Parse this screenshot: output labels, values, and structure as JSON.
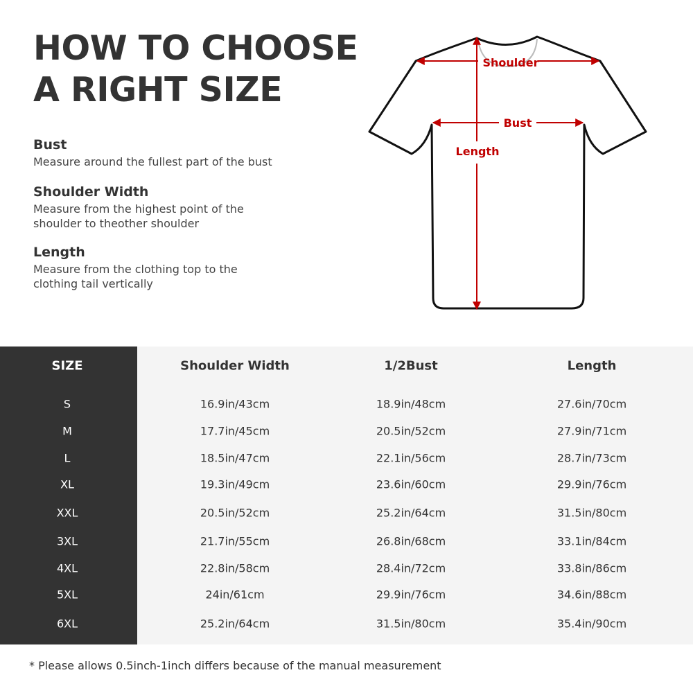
{
  "title": {
    "line1": "HOW TO CHOOSE",
    "line2": "A RIGHT SIZE"
  },
  "guide": [
    {
      "heading": "Bust",
      "text": "Measure around the fullest part of the bust"
    },
    {
      "heading": "Shoulder Width",
      "text": "Measure from the highest point of the shoulder to theother shoulder"
    },
    {
      "heading": "Length",
      "text": "Measure from the clothing top to the clothing tail vertically"
    }
  ],
  "diagram": {
    "shoulder": "Shoulder",
    "bust": "Bust",
    "length": "Length",
    "arrow_color": "#c00000"
  },
  "table": {
    "headers": [
      "SIZE",
      "Shoulder Width",
      "1/2Bust",
      "Length"
    ],
    "rows": [
      [
        "S",
        "16.9in/43cm",
        "18.9in/48cm",
        "27.6in/70cm"
      ],
      [
        "M",
        "17.7in/45cm",
        "20.5in/52cm",
        "27.9in/71cm"
      ],
      [
        "L",
        "18.5in/47cm",
        "22.1in/56cm",
        "28.7in/73cm"
      ],
      [
        "XL",
        "19.3in/49cm",
        "23.6in/60cm",
        "29.9in/76cm"
      ],
      [
        "XXL",
        "20.5in/52cm",
        "25.2in/64cm",
        "31.5in/80cm"
      ],
      [
        "3XL",
        "21.7in/55cm",
        "26.8in/68cm",
        "33.1in/84cm"
      ],
      [
        "4XL",
        "22.8in/58cm",
        "28.4in/72cm",
        "33.8in/86cm"
      ],
      [
        "5XL",
        "24in/61cm",
        "29.9in/76cm",
        "34.6in/88cm"
      ],
      [
        "6XL",
        "25.2in/64cm",
        "31.5in/80cm",
        "35.4in/90cm"
      ]
    ]
  },
  "footer": "* Please allows 0.5inch-1inch differs because of the  manual measurement"
}
